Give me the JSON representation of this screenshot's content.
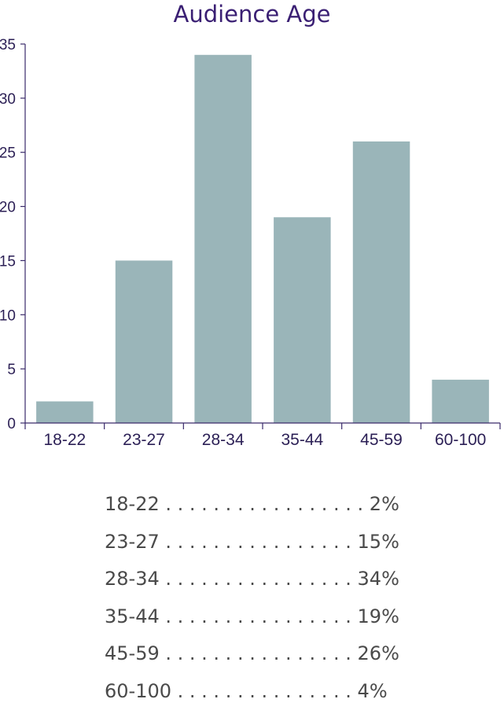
{
  "chart_data": {
    "type": "bar",
    "title": "Audience Age",
    "xlabel": "",
    "ylabel": "",
    "ylim": [
      0,
      35
    ],
    "yticks": [
      0,
      5,
      10,
      15,
      20,
      25,
      30,
      35
    ],
    "grid": false,
    "categories": [
      "18-22",
      "23-27",
      "28-34",
      "35-44",
      "45-59",
      "60-100"
    ],
    "values": [
      2,
      15,
      34,
      19,
      26,
      4
    ]
  },
  "colors": {
    "bar": "#9ab5b9",
    "axis": "#3a2a6a",
    "title": "#3a1f73",
    "text": "#4a4a4a"
  },
  "legend_table": {
    "rows": [
      {
        "label": "18-22",
        "dots": ". . . . . . . . . . . . . . . . .",
        "value": "2%"
      },
      {
        "label": "23-27",
        "dots": ". . . . . . . . . . . . . . . .",
        "value": "15%"
      },
      {
        "label": "28-34",
        "dots": ". . . . . . . . . . . . . . . .",
        "value": "34%"
      },
      {
        "label": "35-44",
        "dots": ". . . . . . . . . . . . . . . .",
        "value": "19%"
      },
      {
        "label": "45-59",
        "dots": ". . . . . . . . . . . . . . . .",
        "value": "26%"
      },
      {
        "label": "60-100",
        "dots": ". . . . . . . . . . . . . . .",
        "value": "4%"
      }
    ]
  }
}
